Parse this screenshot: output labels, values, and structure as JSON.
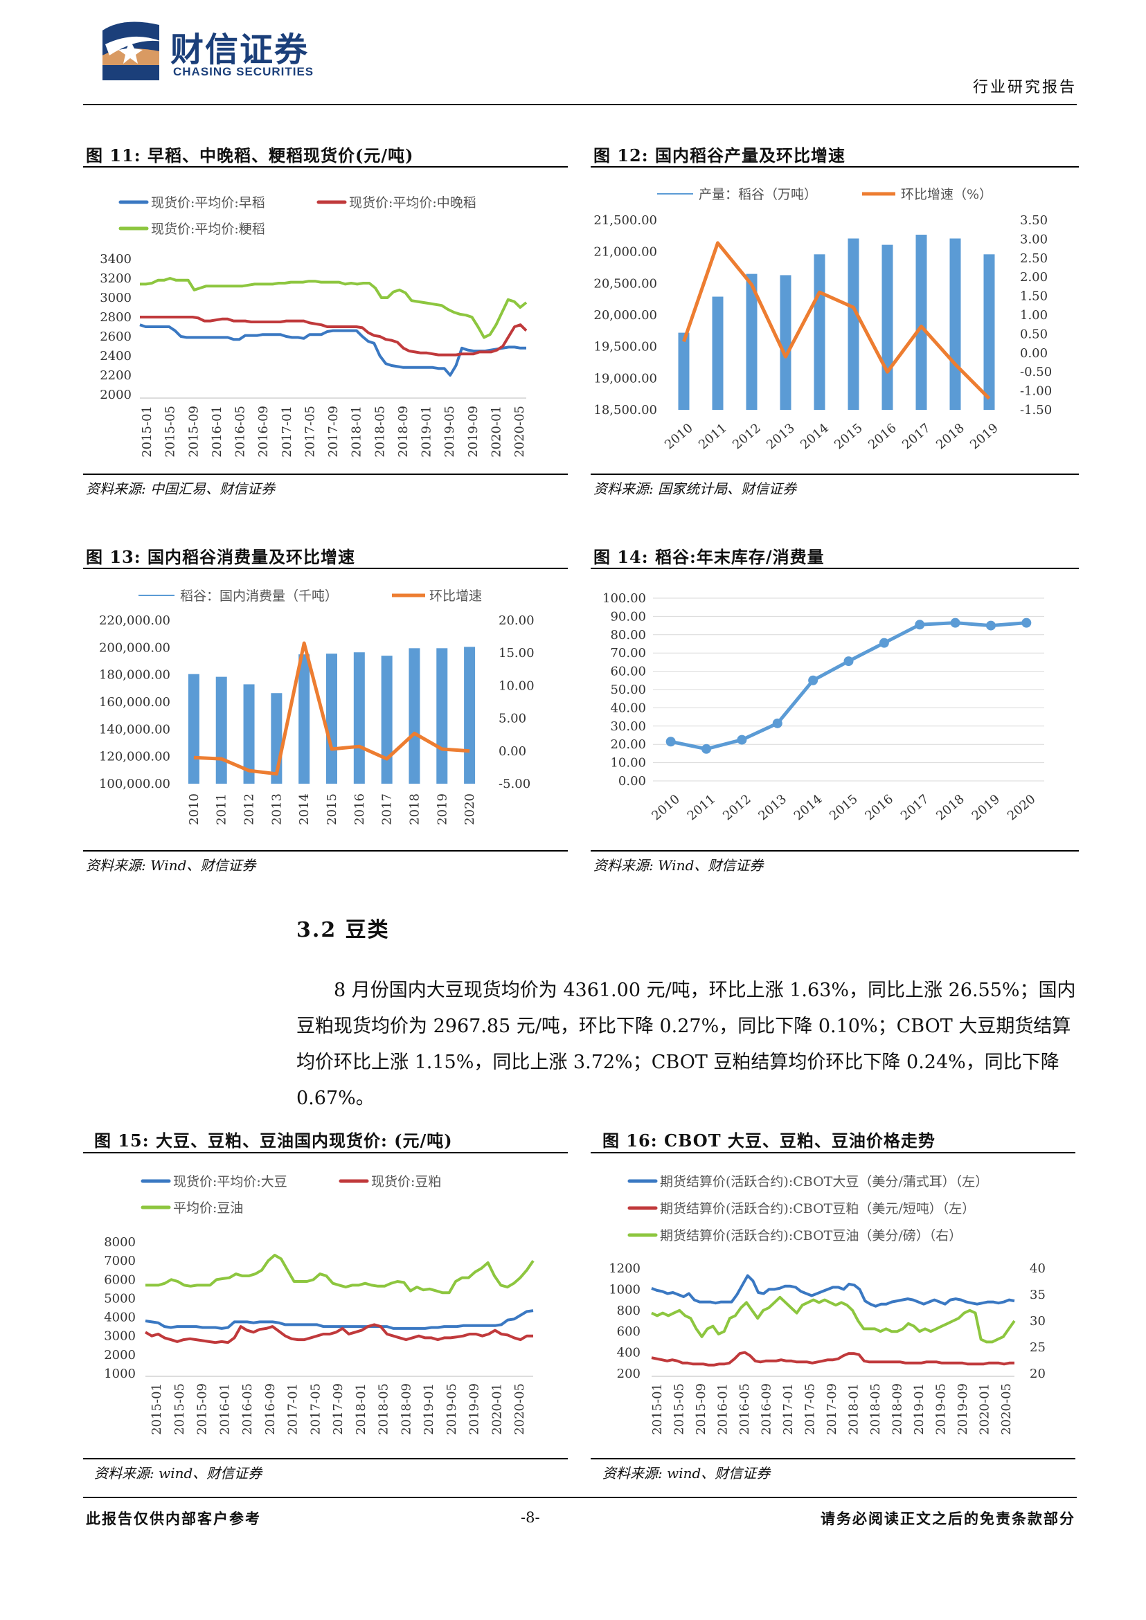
{
  "header": {
    "company_cn": "财信证券",
    "company_en": "CHASING SECURITIES",
    "doc_type": "行业研究报告"
  },
  "figures": {
    "fig11": {
      "title": "图 11:  早稻、中晚稻、粳稻现货价(元/吨)",
      "source": "资料来源:  中国汇易、财信证券"
    },
    "fig12": {
      "title": "图 12:  国内稻谷产量及环比增速",
      "source": "资料来源:  国家统计局、财信证券"
    },
    "fig13": {
      "title": "图 13:  国内稻谷消费量及环比增速",
      "source": "资料来源:  Wind、财信证券"
    },
    "fig14": {
      "title": "图 14:  稻谷:年末库存/消费量",
      "source": "资料来源:  Wind、财信证券"
    },
    "fig15": {
      "title": "图 15:  大豆、豆粕、豆油国内现货价:  (元/吨)",
      "source": "资料来源:  wind、财信证券"
    },
    "fig16": {
      "title": "图 16:  CBOT 大豆、豆粕、豆油价格走势",
      "source": "资料来源:  wind、财信证券"
    }
  },
  "section": {
    "heading": "3.2 豆类",
    "paragraph": "8 月份国内大豆现货均价为 4361.00 元/吨，环比上涨 1.63%，同比上涨 26.55%；国内豆粕现货均价为 2967.85 元/吨，环比下降 0.27%，同比下降 0.10%；CBOT 大豆期货结算均价环比上涨 1.15%，同比上涨 3.72%；CBOT 豆粕结算均价环比下降 0.24%，同比下降 0.67%。"
  },
  "footer": {
    "left": "此报告仅供内部客户参考",
    "page": "-8-",
    "right": "请务必阅读正文之后的免责条款部分"
  },
  "chart_data": [
    {
      "id": "fig11",
      "type": "line",
      "legend": [
        "现货价:平均价:早稻",
        "现货价:平均价:中晚稻",
        "现货价:平均价:粳稻"
      ],
      "x_ticks": [
        "2015-01",
        "2015-05",
        "2015-09",
        "2016-01",
        "2016-05",
        "2016-09",
        "2017-01",
        "2017-05",
        "2017-09",
        "2018-01",
        "2018-05",
        "2018-09",
        "2019-01",
        "2019-05",
        "2019-09",
        "2020-01",
        "2020-05"
      ],
      "y_ticks": [
        "3400",
        "3200",
        "3000",
        "2800",
        "2600",
        "2400",
        "2200",
        "2000"
      ],
      "ylim": [
        2000,
        3400
      ],
      "series": [
        {
          "name": "现货价:平均价:早稻",
          "color": "#3a78c2",
          "values": [
            2720,
            2700,
            2700,
            2700,
            2700,
            2700,
            2660,
            2600,
            2590,
            2590,
            2590,
            2590,
            2590,
            2590,
            2590,
            2590,
            2570,
            2570,
            2610,
            2610,
            2610,
            2620,
            2620,
            2620,
            2620,
            2600,
            2590,
            2590,
            2580,
            2620,
            2620,
            2620,
            2650,
            2660,
            2660,
            2660,
            2660,
            2660,
            2600,
            2550,
            2530,
            2400,
            2320,
            2300,
            2290,
            2280,
            2280,
            2280,
            2280,
            2280,
            2280,
            2270,
            2270,
            2200,
            2300,
            2480,
            2460,
            2450,
            2450,
            2450,
            2460,
            2470,
            2480,
            2490,
            2490,
            2480,
            2480
          ]
        },
        {
          "name": "现货价:平均价:中晚稻",
          "color": "#c0393b",
          "values": [
            2800,
            2800,
            2800,
            2800,
            2800,
            2800,
            2800,
            2800,
            2800,
            2800,
            2790,
            2760,
            2760,
            2770,
            2780,
            2780,
            2760,
            2760,
            2760,
            2750,
            2750,
            2750,
            2750,
            2750,
            2750,
            2760,
            2760,
            2760,
            2760,
            2740,
            2730,
            2720,
            2700,
            2700,
            2700,
            2700,
            2700,
            2700,
            2690,
            2640,
            2610,
            2600,
            2570,
            2560,
            2540,
            2480,
            2450,
            2440,
            2430,
            2430,
            2420,
            2410,
            2410,
            2410,
            2410,
            2420,
            2420,
            2420,
            2440,
            2440,
            2440,
            2460,
            2500,
            2600,
            2700,
            2720,
            2660
          ]
        },
        {
          "name": "现货价:平均价:粳稻",
          "color": "#8dc63f",
          "values": [
            3140,
            3140,
            3150,
            3180,
            3180,
            3200,
            3180,
            3180,
            3180,
            3080,
            3100,
            3120,
            3120,
            3120,
            3120,
            3120,
            3120,
            3120,
            3130,
            3140,
            3140,
            3140,
            3140,
            3150,
            3150,
            3160,
            3160,
            3160,
            3170,
            3170,
            3160,
            3160,
            3160,
            3160,
            3140,
            3150,
            3140,
            3150,
            3150,
            3100,
            3000,
            3000,
            3060,
            3080,
            3050,
            2970,
            2960,
            2950,
            2940,
            2930,
            2920,
            2880,
            2850,
            2830,
            2820,
            2800,
            2700,
            2590,
            2620,
            2720,
            2850,
            2980,
            2960,
            2900,
            2950
          ]
        }
      ]
    },
    {
      "id": "fig12",
      "type": "bar+line",
      "legend": [
        "产量：稻谷（万吨）",
        "环比增速（%）"
      ],
      "categories": [
        "2010",
        "2011",
        "2012",
        "2013",
        "2014",
        "2015",
        "2016",
        "2017",
        "2018",
        "2019"
      ],
      "bars": {
        "name": "产量：稻谷（万吨）",
        "color": "#5b9bd5",
        "values": [
          19720,
          20290,
          20650,
          20630,
          20960,
          21210,
          21110,
          21270,
          21210,
          20960
        ]
      },
      "line": {
        "name": "环比增速（%）",
        "color": "#ed7d31",
        "values": [
          0.3,
          2.9,
          1.8,
          -0.1,
          1.6,
          1.2,
          -0.5,
          0.7,
          -0.3,
          -1.2
        ]
      },
      "y_left_ticks": [
        "21,500.00",
        "21,000.00",
        "20,500.00",
        "20,000.00",
        "19,500.00",
        "19,000.00",
        "18,500.00"
      ],
      "y_right_ticks": [
        "3.50",
        "3.00",
        "2.50",
        "2.00",
        "1.50",
        "1.00",
        "0.50",
        "0.00",
        "-0.50",
        "-1.00",
        "-1.50"
      ],
      "ylim_left": [
        18500,
        21500
      ],
      "ylim_right": [
        -1.5,
        3.5
      ]
    },
    {
      "id": "fig13",
      "type": "bar+line",
      "legend": [
        "稻谷：国内消费量（千吨）",
        "环比增速"
      ],
      "categories": [
        "2010",
        "2011",
        "2012",
        "2013",
        "2014",
        "2015",
        "2016",
        "2017",
        "2018",
        "2019",
        "2020"
      ],
      "bars": {
        "name": "稻谷：国内消费量（千吨）",
        "color": "#5b9bd5",
        "values": [
          180500,
          178500,
          173000,
          166500,
          195000,
          195500,
          196500,
          194000,
          199500,
          199500,
          200500
        ]
      },
      "line": {
        "name": "环比增速",
        "color": "#ed7d31",
        "values": [
          -1.0,
          -1.2,
          -3.0,
          -3.5,
          16.5,
          0.3,
          0.7,
          -1.2,
          2.7,
          0.3,
          0.0
        ]
      },
      "y_left_ticks": [
        "220,000.00",
        "200,000.00",
        "180,000.00",
        "160,000.00",
        "140,000.00",
        "120,000.00",
        "100,000.00"
      ],
      "y_right_ticks": [
        "20.00",
        "15.00",
        "10.00",
        "5.00",
        "0.00",
        "-5.00"
      ],
      "ylim_left": [
        100000,
        220000
      ],
      "ylim_right": [
        -5,
        20
      ]
    },
    {
      "id": "fig14",
      "type": "line",
      "categories": [
        "2010",
        "2011",
        "2012",
        "2013",
        "2014",
        "2015",
        "2016",
        "2017",
        "2018",
        "2019",
        "2020"
      ],
      "values": [
        21.5,
        17.5,
        22.5,
        31.5,
        55,
        65.5,
        75.5,
        85.5,
        86.5,
        85,
        86.5
      ],
      "color": "#5b9bd5",
      "y_ticks": [
        "100.00",
        "90.00",
        "80.00",
        "70.00",
        "60.00",
        "50.00",
        "40.00",
        "30.00",
        "20.00",
        "10.00",
        "0.00"
      ],
      "ylim": [
        0,
        100
      ]
    },
    {
      "id": "fig15",
      "type": "line",
      "legend": [
        "现货价:平均价:大豆",
        "现货价:豆粕",
        "平均价:豆油"
      ],
      "x_ticks": [
        "2015-01",
        "2015-05",
        "2015-09",
        "2016-01",
        "2016-05",
        "2016-09",
        "2017-01",
        "2017-05",
        "2017-09",
        "2018-01",
        "2018-05",
        "2018-09",
        "2019-01",
        "2019-05",
        "2019-09",
        "2020-01",
        "2020-05"
      ],
      "y_ticks": [
        "8000",
        "7000",
        "6000",
        "5000",
        "4000",
        "3000",
        "2000",
        "1000"
      ],
      "ylim": [
        1000,
        8000
      ],
      "series": [
        {
          "name": "现货价:平均价:大豆",
          "color": "#3a78c2",
          "values": [
            3800,
            3750,
            3700,
            3500,
            3450,
            3500,
            3500,
            3500,
            3500,
            3450,
            3450,
            3450,
            3400,
            3450,
            3750,
            3750,
            3750,
            3700,
            3750,
            3750,
            3750,
            3700,
            3600,
            3600,
            3600,
            3600,
            3600,
            3600,
            3500,
            3500,
            3500,
            3500,
            3500,
            3500,
            3500,
            3500,
            3500,
            3500,
            3500,
            3400,
            3400,
            3400,
            3400,
            3400,
            3400,
            3450,
            3450,
            3500,
            3500,
            3500,
            3550,
            3550,
            3550,
            3550,
            3550,
            3550,
            3600,
            3850,
            3900,
            4100,
            4300,
            4350
          ]
        },
        {
          "name": "现货价:豆粕",
          "color": "#c0393b",
          "values": [
            3200,
            3000,
            3100,
            2900,
            2800,
            2700,
            2800,
            2850,
            2800,
            2750,
            2700,
            2650,
            2700,
            2650,
            2900,
            3500,
            3300,
            3200,
            3350,
            3400,
            3500,
            3250,
            3000,
            2850,
            2800,
            2800,
            2900,
            3000,
            3100,
            3100,
            3200,
            3400,
            3100,
            3200,
            3300,
            3500,
            3600,
            3500,
            3100,
            3000,
            2900,
            2800,
            2900,
            3000,
            2900,
            2900,
            2800,
            2900,
            2900,
            2950,
            3000,
            3100,
            3100,
            3000,
            3100,
            3300,
            3100,
            3050,
            2900,
            2800,
            3000,
            3000
          ]
        },
        {
          "name": "平均价:豆油",
          "color": "#8dc63f",
          "values": [
            5700,
            5700,
            5700,
            5800,
            6000,
            5900,
            5700,
            5650,
            5700,
            5700,
            5700,
            6000,
            6050,
            6100,
            6300,
            6200,
            6200,
            6300,
            6500,
            7000,
            7300,
            7100,
            6500,
            5900,
            5900,
            5900,
            6000,
            6300,
            6200,
            5800,
            5700,
            5600,
            5700,
            5700,
            5800,
            5700,
            5650,
            5650,
            5800,
            5900,
            5850,
            5400,
            5600,
            5450,
            5500,
            5400,
            5300,
            5300,
            5900,
            6100,
            6100,
            6400,
            6600,
            6900,
            6200,
            5700,
            5600,
            5800,
            6100,
            6500,
            7000
          ]
        }
      ]
    },
    {
      "id": "fig16",
      "type": "line",
      "legend": [
        "期货结算价(活跃合约):CBOT大豆（美分/蒲式耳）（左）",
        "期货结算价(活跃合约):CBOT豆粕（美元/短吨）（左）",
        "期货结算价(活跃合约):CBOT豆油（美分/磅）（右）"
      ],
      "x_ticks": [
        "2015-01",
        "2015-05",
        "2015-09",
        "2016-01",
        "2016-05",
        "2016-09",
        "2017-01",
        "2017-05",
        "2017-09",
        "2018-01",
        "2018-05",
        "2018-09",
        "2019-01",
        "2019-05",
        "2019-09",
        "2020-01",
        "2020-05"
      ],
      "y_left_ticks": [
        "1200",
        "1000",
        "800",
        "600",
        "400",
        "200"
      ],
      "y_right_ticks": [
        "40",
        "35",
        "30",
        "25",
        "20"
      ],
      "ylim_left": [
        200,
        1200
      ],
      "ylim_right": [
        20,
        40
      ],
      "series": [
        {
          "name": "期货结算价(活跃合约):CBOT大豆（美分/蒲式耳）（左）",
          "color": "#3a78c2",
          "axis": "left",
          "values": [
            1010,
            990,
            980,
            960,
            970,
            950,
            930,
            960,
            900,
            880,
            880,
            880,
            870,
            880,
            880,
            880,
            950,
            1040,
            1130,
            1080,
            970,
            960,
            1000,
            1000,
            1010,
            1030,
            1030,
            1020,
            980,
            960,
            940,
            960,
            980,
            1000,
            1020,
            1020,
            1000,
            1050,
            1040,
            1000,
            890,
            860,
            840,
            860,
            860,
            880,
            890,
            900,
            910,
            900,
            880,
            860,
            880,
            900,
            880,
            860,
            900,
            910,
            900,
            880,
            870,
            860,
            870,
            880,
            880,
            870,
            880,
            900,
            890
          ]
        },
        {
          "name": "期货结算价(活跃合约):CBOT豆粕（美元/短吨）（左）",
          "color": "#c0393b",
          "axis": "left",
          "values": [
            350,
            340,
            330,
            320,
            330,
            320,
            300,
            300,
            290,
            290,
            290,
            280,
            280,
            290,
            290,
            300,
            340,
            390,
            400,
            370,
            320,
            310,
            320,
            320,
            320,
            330,
            320,
            320,
            310,
            310,
            310,
            300,
            310,
            320,
            330,
            330,
            340,
            370,
            390,
            390,
            380,
            320,
            310,
            310,
            310,
            310,
            310,
            310,
            310,
            300,
            300,
            300,
            300,
            310,
            310,
            310,
            300,
            300,
            300,
            300,
            300,
            290,
            290,
            290,
            290,
            300,
            300,
            300,
            290,
            300,
            300
          ]
        },
        {
          "name": "期货结算价(活跃合约):CBOT豆油（美分/磅）（右）",
          "color": "#8dc63f",
          "axis": "right",
          "values": [
            31.5,
            31.0,
            31.5,
            31.0,
            31.5,
            32.0,
            31.0,
            30.5,
            28.5,
            27.0,
            28.5,
            29.0,
            27.5,
            28.0,
            30.5,
            31.0,
            32.5,
            33.5,
            32.0,
            30.5,
            32.0,
            32.5,
            33.5,
            34.5,
            33.5,
            32.5,
            31.5,
            33.0,
            33.5,
            34.0,
            33.5,
            34.0,
            33.5,
            33.0,
            33.5,
            33.0,
            32.0,
            30.0,
            28.5,
            28.5,
            28.5,
            28.0,
            28.5,
            28.0,
            28.0,
            28.5,
            29.5,
            29.0,
            28.0,
            28.5,
            28.0,
            28.5,
            29.0,
            29.5,
            30.0,
            30.5,
            31.5,
            32.0,
            31.5,
            26.5,
            26.0,
            26.0,
            26.5,
            27.0,
            28.5,
            30.0
          ]
        }
      ]
    }
  ]
}
